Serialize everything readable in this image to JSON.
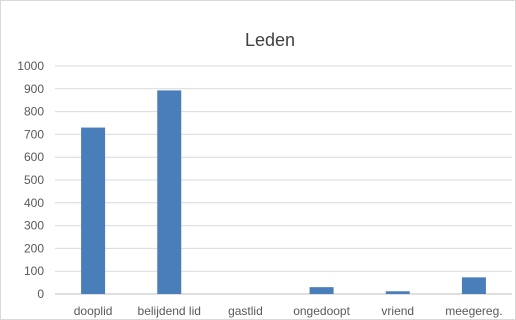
{
  "chart_data": {
    "type": "bar",
    "title": "Leden",
    "categories": [
      "dooplid",
      "belijdend lid",
      "gastlid",
      "ongedoopt",
      "vriend",
      "meegereg."
    ],
    "values": [
      730,
      893,
      0,
      30,
      12,
      73
    ],
    "ylim": [
      0,
      1000
    ],
    "yticks": [
      0,
      100,
      200,
      300,
      400,
      500,
      600,
      700,
      800,
      900,
      1000
    ],
    "grid": true,
    "legend": "none",
    "bar_color": "#4a7ebb",
    "grid_color": "#d9d9d9"
  }
}
